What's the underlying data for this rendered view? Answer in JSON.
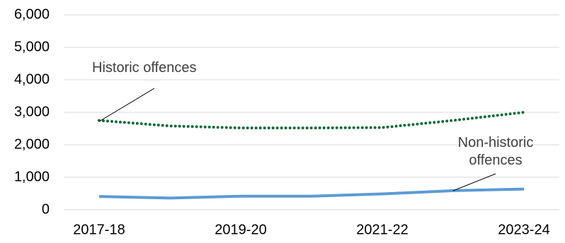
{
  "chart_data": {
    "type": "line",
    "categories": [
      "2017-18",
      null,
      "2019-20",
      null,
      "2021-22",
      null,
      "2023-24"
    ],
    "series": [
      {
        "name": "Historic offences",
        "color": "#0e6a36",
        "dash": "dotted",
        "values": [
          2750,
          2580,
          2520,
          2520,
          2530,
          2750,
          3000
        ]
      },
      {
        "name": "Non-historic offences",
        "color": "#5b9bd5",
        "dash": "solid",
        "values": [
          410,
          360,
          420,
          420,
          490,
          590,
          640
        ]
      }
    ],
    "ylim": [
      0,
      6000
    ],
    "yticks": [
      0,
      {
        "value": 1000,
        "label": "1,000"
      },
      {
        "value": 2000,
        "label": "2,000"
      },
      {
        "value": 3000,
        "label": "3,000"
      },
      {
        "value": 4000,
        "label": "4,000"
      },
      {
        "value": 5000,
        "label": "5,000"
      },
      {
        "value": 6000,
        "label": "6,000"
      }
    ],
    "grid": true
  }
}
